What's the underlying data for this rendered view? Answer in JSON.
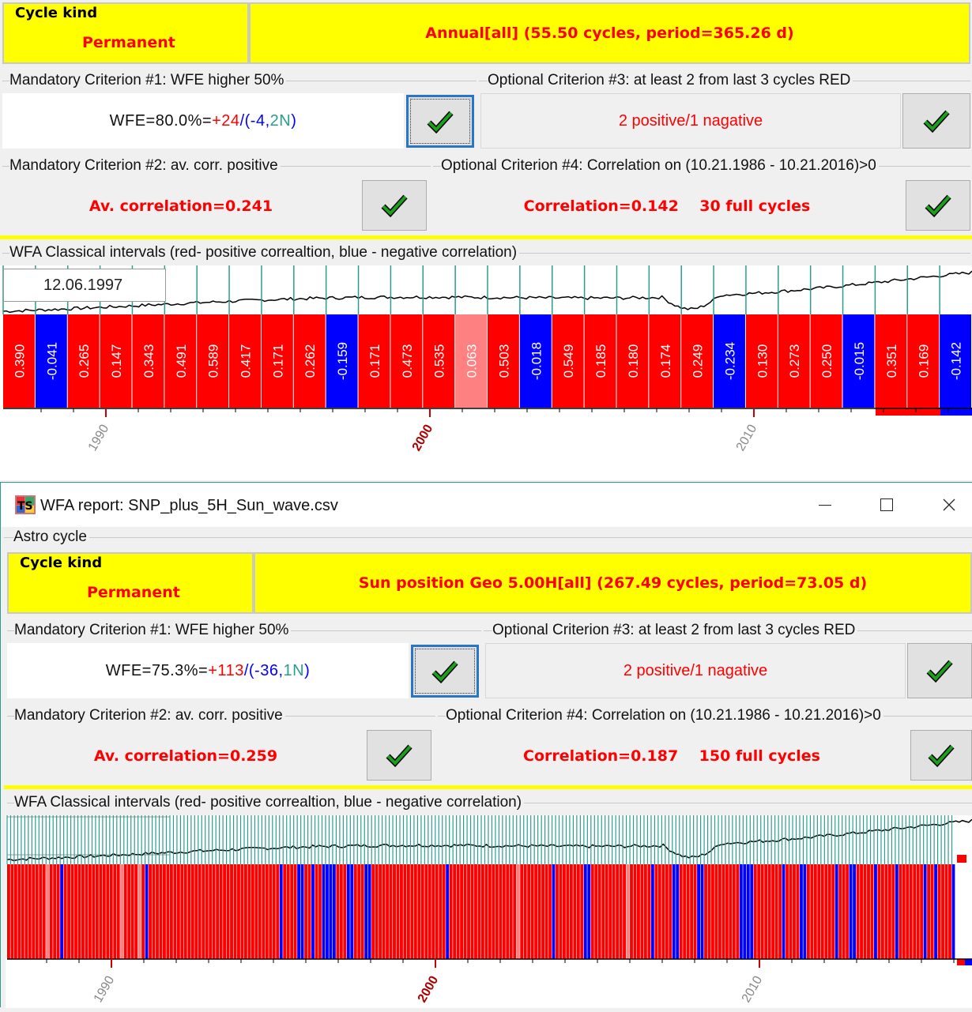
{
  "top": {
    "cycle_kind_label": "Cycle kind",
    "cycle_kind_value": "Permanent",
    "cycle_description": "Annual[all]  (55.50 cycles, period=365.26 d)",
    "crit1_label": "Mandatory Criterion #1: WFE higher 50%",
    "crit1_prefix": "WFE=80.0%=",
    "crit1_pos": "+24",
    "crit1_sep": "/(",
    "crit1_neg": "-4",
    "crit1_comma": ",",
    "crit1_n": "2N",
    "crit1_close": ")",
    "crit3_label": "Optional Criterion #3: at least 2 from last 3 cycles RED",
    "crit3_value": "2 positive/1 nagative",
    "crit2_label": "Mandatory Criterion #2: av.  corr.  positive",
    "crit2_value": "Av. correlation=0.241",
    "crit4_label": "Optional Criterion #4: Correlation on (10.21.1986 - 10.21.2016)>0",
    "crit4_value": "Correlation=0.142    30 full cycles",
    "chart_label": "WFA Classical intervals (red- positive correaltion, blue - negative correlation)",
    "date_box": "12.06.1997",
    "year_labels": [
      "1990",
      "2000",
      "2010"
    ]
  },
  "window": {
    "title": "WFA report: SNP_plus_5H_Sun_wave.csv",
    "app_icon": "ts-app-icon",
    "minimize_icon": "minimize-icon",
    "maximize_icon": "maximize-icon",
    "close_icon": "close-icon"
  },
  "bottom": {
    "astro_label": "Astro cycle",
    "cycle_kind_label": "Cycle kind",
    "cycle_kind_value": "Permanent",
    "cycle_description": "Sun position Geo  5.00H[all]  (267.49 cycles, period=73.05 d)",
    "crit1_label": "Mandatory Criterion #1: WFE higher 50%",
    "crit1_prefix": "WFE=75.3%=",
    "crit1_pos": "+113",
    "crit1_sep": "/(",
    "crit1_neg": "-36",
    "crit1_comma": ",",
    "crit1_n": "1N",
    "crit1_close": ")",
    "crit3_label": "Optional Criterion #3: at least 2 from last 3 cycles RED",
    "crit3_value": "2 positive/1 nagative",
    "crit2_label": "Mandatory Criterion #2: av.  corr.  positive",
    "crit2_value": "Av. correlation=0.259",
    "crit4_label": "Optional Criterion #4: Correlation on (10.21.1986 - 10.21.2016)>0",
    "crit4_value": "Correlation=0.187    150 full cycles",
    "chart_label": "WFA Classical intervals (red- positive correaltion, blue - negative correlation)",
    "year_labels": [
      "1990",
      "2000",
      "2010"
    ]
  },
  "colors": {
    "positive": "#ff0000",
    "positive_weak": "#ff8080",
    "negative": "#0000ff",
    "yellow": "#ffff00",
    "n_green": "#2a9d8f",
    "check_green": "#1aa01a"
  },
  "chart_data": [
    {
      "type": "bar",
      "title": "WFA Classical intervals (red- positive correaltion, blue - negative correlation)",
      "x_ticks": [
        "1990",
        "2000",
        "2010"
      ],
      "values": [
        0.39,
        -0.041,
        0.265,
        0.147,
        0.343,
        0.491,
        0.589,
        0.417,
        0.171,
        0.262,
        -0.159,
        0.171,
        0.473,
        0.535,
        0.063,
        0.503,
        -0.018,
        0.549,
        0.185,
        0.18,
        0.174,
        0.249,
        -0.234,
        0.13,
        0.273,
        0.25,
        -0.015,
        0.351,
        0.169,
        -0.142
      ],
      "labels": [
        "0.390",
        "-0.041",
        "0.265",
        "0.147",
        "0.343",
        "0.491",
        "0.589",
        "0.417",
        "0.171",
        "0.262",
        "-0.159",
        "0.171",
        "0.473",
        "0.535",
        "0.063",
        "0.503",
        "-0.018",
        "0.549",
        "0.185",
        "0.180",
        "0.174",
        "0.249",
        "-0.234",
        "0.130",
        "0.273",
        "0.250",
        "-0.015",
        "0.351",
        "0.169",
        "-0.142"
      ]
    },
    {
      "type": "bar",
      "title": "WFA Classical intervals (red- positive correaltion, blue - negative correlation)",
      "x_ticks": [
        "1990",
        "2000",
        "2010"
      ],
      "pattern": "RRRRRRRRRRRPRRRBRRRRRRRRRRRRRRRRPRRRRPRBRRRRRRRRRRRRRRRRRRRRRRRRRRRRRRRRRRRRRBRRRRBBRRBRRBBBBRRRBBRRRBBRRRRRRRRRRRRRRRRRRRRRBRRRRRRRRRRRRRRRRRRRPRRRRRRRRRBRRRRRRRRBBRRRRRRRRRRPRRRRRRBRRRRRBBRRRRRBBRRRRRRRRRRBBBBRRRRRRRRBRRRRBBRRRRRRRRBRRRBBRRRRRBRRRRRBRRRRRRRBRRBRRRRB"
    }
  ]
}
